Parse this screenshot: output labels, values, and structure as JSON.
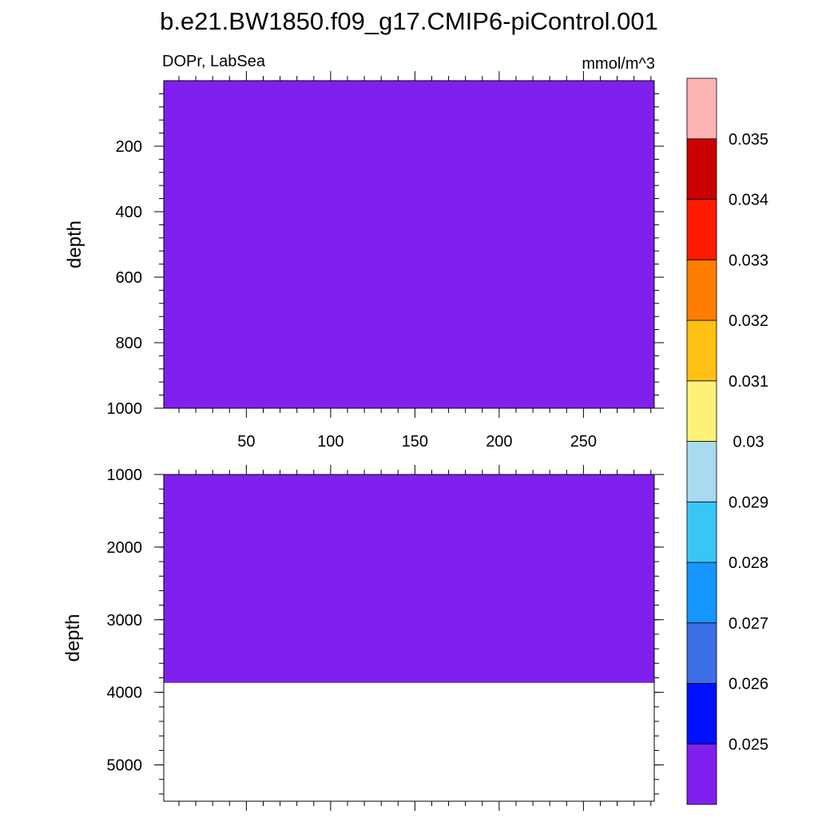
{
  "chart_data": {
    "type": "heatmap",
    "title": "b.e21.BW1850.f09_g17.CMIP6-piControl.001",
    "variable_label": "DOPr, LabSea",
    "units_label": "mmol/m^3",
    "colors": {
      "fill": "#8020ee",
      "no_data": "#ffffff"
    },
    "panels": [
      {
        "name": "upper",
        "ylabel": "depth",
        "y_reversed": true,
        "xlim": [
          1,
          292
        ],
        "ylim": [
          0,
          1000
        ],
        "y_ticks": [
          "200",
          "400",
          "600",
          "800",
          "1000"
        ],
        "x_ticks": [
          "50",
          "100",
          "150",
          "200",
          "250"
        ],
        "field": {
          "value_class": "< 0.025",
          "depth_from": 0,
          "depth_to": 1000
        }
      },
      {
        "name": "lower",
        "ylabel": "depth",
        "y_reversed": true,
        "xlim": [
          1,
          292
        ],
        "ylim": [
          1000,
          5500
        ],
        "y_ticks": [
          "1000",
          "2000",
          "3000",
          "4000",
          "5000"
        ],
        "x_ticks": [],
        "field": {
          "value_class": "< 0.025",
          "depth_from": 1000,
          "depth_to": 3870
        }
      }
    ],
    "colorbar": {
      "labels": [
        "0.025",
        "0.026",
        "0.027",
        "0.028",
        "0.029",
        "0.03",
        "0.031",
        "0.032",
        "0.033",
        "0.034",
        "0.035"
      ],
      "colors": [
        "#8020ee",
        "#0010ff",
        "#3c6ee6",
        "#1696ff",
        "#38c6f6",
        "#a8daf0",
        "#fff078",
        "#ffc014",
        "#ff7e00",
        "#ff1a00",
        "#cc0000",
        "#ffb4b4"
      ]
    }
  }
}
